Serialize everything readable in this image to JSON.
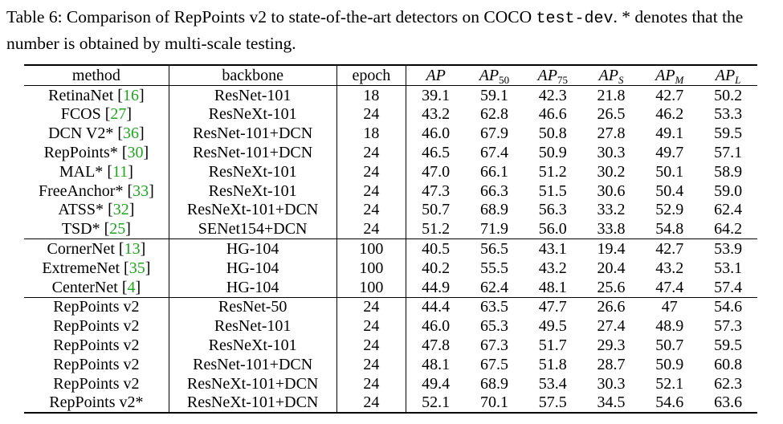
{
  "caption": {
    "label": "Table 6: ",
    "text_before": "Comparison of RepPoints v2 to state-of-the-art detectors on COCO ",
    "code": "test-dev",
    "text_after": ". * denotes that the number is obtained by multi-scale testing."
  },
  "columns": {
    "method": "method",
    "backbone": "backbone",
    "epoch": "epoch",
    "ap": "AP",
    "ap50_base": "AP",
    "ap50_sub": "50",
    "ap75_base": "AP",
    "ap75_sub": "75",
    "aps_base": "AP",
    "aps_sub": "S",
    "apm_base": "AP",
    "apm_sub": "M",
    "apl_base": "AP",
    "apl_sub": "L"
  },
  "groups": [
    {
      "rows": [
        {
          "method": "RetinaNet",
          "ref": "16",
          "backbone": "ResNet-101",
          "epoch": "18",
          "ap": "39.1",
          "ap50": "59.1",
          "ap75": "42.3",
          "aps": "21.8",
          "apm": "42.7",
          "apl": "50.2"
        },
        {
          "method": "FCOS",
          "ref": "27",
          "backbone": "ResNeXt-101",
          "epoch": "24",
          "ap": "43.2",
          "ap50": "62.8",
          "ap75": "46.6",
          "aps": "26.5",
          "apm": "46.2",
          "apl": "53.3"
        },
        {
          "method": "DCN V2*",
          "ref": "36",
          "backbone": "ResNet-101+DCN",
          "epoch": "18",
          "ap": "46.0",
          "ap50": "67.9",
          "ap75": "50.8",
          "aps": "27.8",
          "apm": "49.1",
          "apl": "59.5"
        },
        {
          "method": "RepPoints*",
          "ref": "30",
          "backbone": "ResNet-101+DCN",
          "epoch": "24",
          "ap": "46.5",
          "ap50": "67.4",
          "ap75": "50.9",
          "aps": "30.3",
          "apm": "49.7",
          "apl": "57.1"
        },
        {
          "method": "MAL*",
          "ref": "11",
          "backbone": "ResNeXt-101",
          "epoch": "24",
          "ap": "47.0",
          "ap50": "66.1",
          "ap75": "51.2",
          "aps": "30.2",
          "apm": "50.1",
          "apl": "58.9"
        },
        {
          "method": "FreeAnchor*",
          "ref": "33",
          "backbone": "ResNeXt-101",
          "epoch": "24",
          "ap": "47.3",
          "ap50": "66.3",
          "ap75": "51.5",
          "aps": "30.6",
          "apm": "50.4",
          "apl": "59.0"
        },
        {
          "method": "ATSS*",
          "ref": "32",
          "backbone": "ResNeXt-101+DCN",
          "epoch": "24",
          "ap": "50.7",
          "ap50": "68.9",
          "ap75": "56.3",
          "aps": "33.2",
          "apm": "52.9",
          "apl": "62.4"
        },
        {
          "method": "TSD*",
          "ref": "25",
          "backbone": "SENet154+DCN",
          "epoch": "24",
          "ap": "51.2",
          "ap50": "71.9",
          "ap75": "56.0",
          "aps": "33.8",
          "apm": "54.8",
          "apl": "64.2"
        }
      ]
    },
    {
      "rows": [
        {
          "method": "CornerNet",
          "ref": "13",
          "backbone": "HG-104",
          "epoch": "100",
          "ap": "40.5",
          "ap50": "56.5",
          "ap75": "43.1",
          "aps": "19.4",
          "apm": "42.7",
          "apl": "53.9"
        },
        {
          "method": "ExtremeNet",
          "ref": "35",
          "backbone": "HG-104",
          "epoch": "100",
          "ap": "40.2",
          "ap50": "55.5",
          "ap75": "43.2",
          "aps": "20.4",
          "apm": "43.2",
          "apl": "53.1"
        },
        {
          "method": "CenterNet",
          "ref": "4",
          "backbone": "HG-104",
          "epoch": "100",
          "ap": "44.9",
          "ap50": "62.4",
          "ap75": "48.1",
          "aps": "25.6",
          "apm": "47.4",
          "apl": "57.4"
        }
      ]
    },
    {
      "rows": [
        {
          "method": "RepPoints v2",
          "ref": "",
          "backbone": "ResNet-50",
          "epoch": "24",
          "ap": "44.4",
          "ap50": "63.5",
          "ap75": "47.7",
          "aps": "26.6",
          "apm": "47",
          "apl": "54.6"
        },
        {
          "method": "RepPoints v2",
          "ref": "",
          "backbone": "ResNet-101",
          "epoch": "24",
          "ap": "46.0",
          "ap50": "65.3",
          "ap75": "49.5",
          "aps": "27.4",
          "apm": "48.9",
          "apl": "57.3"
        },
        {
          "method": "RepPoints v2",
          "ref": "",
          "backbone": "ResNeXt-101",
          "epoch": "24",
          "ap": "47.8",
          "ap50": "67.3",
          "ap75": "51.7",
          "aps": "29.3",
          "apm": "50.7",
          "apl": "59.5"
        },
        {
          "method": "RepPoints v2",
          "ref": "",
          "backbone": "ResNet-101+DCN",
          "epoch": "24",
          "ap": "48.1",
          "ap50": "67.5",
          "ap75": "51.8",
          "aps": "28.7",
          "apm": "50.9",
          "apl": "60.8"
        },
        {
          "method": "RepPoints v2",
          "ref": "",
          "backbone": "ResNeXt-101+DCN",
          "epoch": "24",
          "ap": "49.4",
          "ap50": "68.9",
          "ap75": "53.4",
          "aps": "30.3",
          "apm": "52.1",
          "apl": "62.3"
        },
        {
          "method": "RepPoints v2*",
          "ref": "",
          "backbone": "ResNeXt-101+DCN",
          "epoch": "24",
          "ap": "52.1",
          "ap_bold": true,
          "ap50": "70.1",
          "ap75": "57.5",
          "aps": "34.5",
          "apm": "54.6",
          "apl": "63.6"
        }
      ]
    }
  ],
  "colors": {
    "reference_link": "#1fa51f"
  }
}
